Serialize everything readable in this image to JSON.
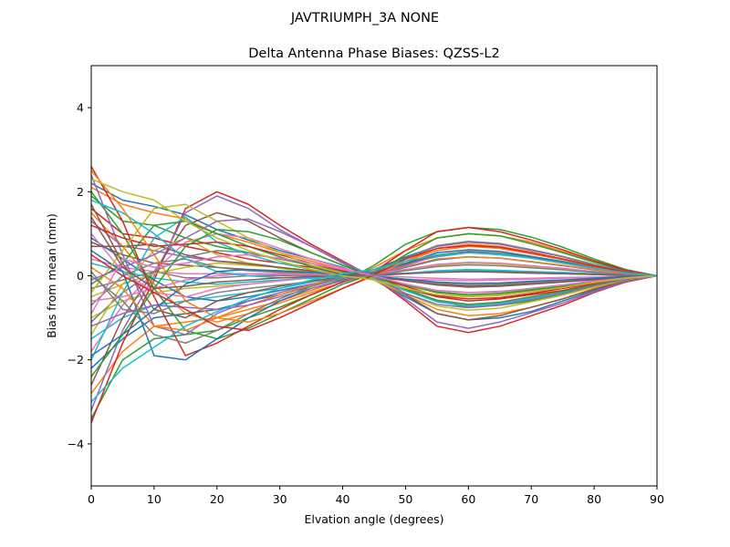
{
  "figure": {
    "suptitle": "JAVTRIUMPH_3A   NONE"
  },
  "chart_data": {
    "type": "line",
    "title": "Delta Antenna Phase Biases: QZSS-L2",
    "xlabel": "Elvation angle (degrees)",
    "ylabel": "Bias from mean (mm)",
    "xlim": [
      0,
      90
    ],
    "ylim": [
      -5,
      5
    ],
    "xticks": [
      0,
      10,
      20,
      30,
      40,
      50,
      60,
      70,
      80,
      90
    ],
    "yticks": [
      -4,
      -2,
      0,
      2,
      4
    ],
    "xtick_labels": [
      "0",
      "10",
      "20",
      "30",
      "40",
      "50",
      "60",
      "70",
      "80",
      "90"
    ],
    "ytick_labels": [
      "−4",
      "−2",
      "0",
      "2",
      "4"
    ],
    "grid": false,
    "legend": "none",
    "colors": [
      "#1f77b4",
      "#ff7f0e",
      "#2ca02c",
      "#d62728",
      "#9467bd",
      "#8c564b",
      "#e377c2",
      "#7f7f7f",
      "#bcbd22",
      "#17becf"
    ],
    "x": [
      0,
      5,
      10,
      15,
      20,
      25,
      30,
      35,
      40,
      45,
      50,
      55,
      60,
      65,
      70,
      75,
      80,
      85,
      90
    ],
    "series": [
      {
        "values": [
          2.2,
          1.8,
          1.65,
          1.45,
          1.1,
          0.85,
          0.6,
          0.4,
          0.2,
          -0.1,
          -0.5,
          -0.9,
          -1.05,
          -1.0,
          -0.85,
          -0.6,
          -0.35,
          -0.15,
          0.0
        ]
      },
      {
        "values": [
          2.1,
          1.7,
          1.5,
          1.35,
          1.0,
          0.8,
          0.55,
          0.35,
          0.15,
          -0.1,
          -0.45,
          -0.8,
          -0.95,
          -0.9,
          -0.75,
          -0.55,
          -0.3,
          -0.12,
          0.0
        ]
      },
      {
        "values": [
          1.9,
          1.3,
          1.2,
          0.9,
          0.7,
          0.55,
          0.4,
          0.25,
          0.1,
          -0.1,
          -0.35,
          -0.6,
          -0.75,
          -0.7,
          -0.6,
          -0.45,
          -0.25,
          -0.1,
          0.0
        ]
      },
      {
        "values": [
          1.6,
          1.0,
          0.9,
          0.7,
          0.55,
          0.4,
          0.3,
          0.2,
          0.05,
          -0.1,
          -0.3,
          -0.5,
          -0.6,
          -0.55,
          -0.45,
          -0.35,
          -0.2,
          -0.08,
          0.0
        ]
      },
      {
        "values": [
          1.3,
          0.7,
          0.6,
          0.45,
          0.35,
          0.3,
          0.2,
          0.1,
          0.0,
          -0.05,
          -0.2,
          -0.35,
          -0.4,
          -0.38,
          -0.3,
          -0.22,
          -0.12,
          -0.05,
          0.0
        ]
      },
      {
        "values": [
          0.8,
          0.5,
          0.3,
          0.25,
          0.2,
          0.15,
          0.1,
          0.05,
          0.0,
          -0.05,
          -0.1,
          -0.2,
          -0.25,
          -0.22,
          -0.18,
          -0.12,
          -0.08,
          -0.03,
          0.0
        ]
      },
      {
        "values": [
          0.4,
          0.2,
          0.1,
          0.05,
          0.05,
          0.05,
          0.02,
          0.0,
          -0.02,
          -0.05,
          -0.08,
          -0.1,
          -0.12,
          -0.1,
          -0.08,
          -0.06,
          -0.04,
          -0.02,
          0.0
        ]
      },
      {
        "values": [
          -0.3,
          -0.1,
          0.1,
          -0.05,
          -0.05,
          0.0,
          0.0,
          0.02,
          0.03,
          0.04,
          0.06,
          0.08,
          0.1,
          0.08,
          0.06,
          0.05,
          0.03,
          0.01,
          0.0
        ]
      },
      {
        "values": [
          -1.0,
          -0.6,
          -0.4,
          -0.3,
          -0.25,
          -0.2,
          -0.12,
          -0.05,
          0.0,
          0.05,
          0.15,
          0.25,
          0.3,
          0.28,
          0.22,
          0.16,
          0.1,
          0.04,
          0.0
        ]
      },
      {
        "values": [
          -1.5,
          -1.0,
          -0.7,
          -0.6,
          -0.5,
          -0.4,
          -0.3,
          -0.15,
          0.0,
          0.1,
          0.3,
          0.45,
          0.55,
          0.5,
          0.42,
          0.3,
          0.18,
          0.07,
          0.0
        ]
      },
      {
        "values": [
          -2.2,
          -1.5,
          -1.0,
          -0.9,
          -0.8,
          -0.6,
          -0.45,
          -0.25,
          -0.05,
          0.15,
          0.45,
          0.7,
          0.8,
          0.75,
          0.62,
          0.45,
          0.27,
          0.1,
          0.0
        ]
      },
      {
        "values": [
          -2.8,
          -1.8,
          -1.2,
          -1.1,
          -1.0,
          -0.8,
          -0.6,
          -0.35,
          -0.1,
          0.2,
          0.6,
          0.9,
          1.0,
          0.95,
          0.8,
          0.58,
          0.35,
          0.13,
          0.0
        ]
      },
      {
        "values": [
          -3.4,
          -2.0,
          -1.5,
          -1.4,
          -1.3,
          -1.0,
          -0.75,
          -0.45,
          -0.15,
          0.25,
          0.75,
          1.05,
          1.15,
          1.1,
          0.92,
          0.68,
          0.4,
          0.15,
          0.0
        ]
      },
      {
        "values": [
          -3.5,
          -1.6,
          -0.1,
          1.6,
          2.0,
          1.7,
          1.2,
          0.75,
          0.35,
          -0.05,
          -0.6,
          -1.2,
          -1.35,
          -1.2,
          -0.95,
          -0.7,
          -0.4,
          -0.15,
          0.0
        ]
      },
      {
        "values": [
          -3.2,
          -1.3,
          0.0,
          1.5,
          1.9,
          1.6,
          1.1,
          0.7,
          0.3,
          -0.05,
          -0.55,
          -1.1,
          -1.25,
          -1.1,
          -0.88,
          -0.65,
          -0.38,
          -0.14,
          0.0
        ]
      },
      {
        "values": [
          -2.6,
          -1.0,
          0.1,
          1.2,
          1.5,
          1.3,
          0.9,
          0.55,
          0.25,
          -0.05,
          -0.45,
          -0.9,
          -1.05,
          -0.95,
          -0.75,
          -0.55,
          -0.32,
          -0.12,
          0.0
        ]
      },
      {
        "values": [
          -1.8,
          -0.7,
          0.1,
          0.8,
          1.0,
          0.9,
          0.65,
          0.4,
          0.18,
          -0.03,
          -0.3,
          -0.6,
          -0.7,
          -0.65,
          -0.52,
          -0.38,
          -0.22,
          -0.08,
          0.0
        ]
      },
      {
        "values": [
          -1.1,
          -0.4,
          0.1,
          0.45,
          0.6,
          0.55,
          0.4,
          0.25,
          0.1,
          -0.02,
          -0.2,
          -0.38,
          -0.45,
          -0.42,
          -0.33,
          -0.24,
          -0.14,
          -0.05,
          0.0
        ]
      },
      {
        "values": [
          -0.5,
          -0.2,
          0.05,
          0.2,
          0.3,
          0.25,
          0.2,
          0.12,
          0.05,
          -0.01,
          -0.1,
          -0.18,
          -0.22,
          -0.2,
          -0.16,
          -0.12,
          -0.07,
          -0.03,
          0.0
        ]
      },
      {
        "values": [
          0.3,
          0.1,
          -0.05,
          -0.15,
          -0.2,
          -0.15,
          -0.1,
          -0.06,
          -0.02,
          0.01,
          0.06,
          0.12,
          0.15,
          0.13,
          0.1,
          0.08,
          0.05,
          0.02,
          0.0
        ]
      },
      {
        "values": [
          0.9,
          0.4,
          -0.1,
          -0.5,
          -0.6,
          -0.5,
          -0.35,
          -0.2,
          -0.08,
          0.02,
          0.2,
          0.38,
          0.45,
          0.42,
          0.33,
          0.24,
          0.14,
          0.05,
          0.0
        ]
      },
      {
        "values": [
          1.5,
          0.7,
          -0.2,
          -0.9,
          -1.1,
          -0.9,
          -0.65,
          -0.4,
          -0.15,
          0.04,
          0.35,
          0.65,
          0.75,
          0.7,
          0.56,
          0.4,
          0.24,
          0.09,
          0.0
        ]
      },
      {
        "values": [
          2.0,
          1.0,
          -0.3,
          -1.3,
          -1.5,
          -1.25,
          -0.9,
          -0.55,
          -0.2,
          0.05,
          0.5,
          0.9,
          1.0,
          0.95,
          0.76,
          0.55,
          0.32,
          0.12,
          0.0
        ]
      },
      {
        "values": [
          2.6,
          1.3,
          -0.5,
          -1.9,
          -1.6,
          -1.2,
          -0.8,
          -0.45,
          -0.15,
          0.1,
          0.6,
          1.05,
          1.15,
          1.05,
          0.85,
          0.62,
          0.36,
          0.13,
          0.0
        ]
      },
      {
        "values": [
          2.4,
          0.5,
          -1.2,
          -1.4,
          -0.9,
          -0.6,
          -0.4,
          -0.2,
          -0.05,
          0.1,
          0.4,
          0.7,
          0.8,
          0.75,
          0.6,
          0.45,
          0.26,
          0.1,
          0.0
        ]
      },
      {
        "values": [
          1.7,
          0.3,
          -0.8,
          -1.0,
          -0.6,
          -0.4,
          -0.25,
          -0.12,
          -0.03,
          0.07,
          0.28,
          0.5,
          0.58,
          0.54,
          0.44,
          0.32,
          0.19,
          0.07,
          0.0
        ]
      },
      {
        "values": [
          1.0,
          0.1,
          -0.4,
          -0.5,
          -0.3,
          -0.2,
          -0.12,
          -0.05,
          -0.01,
          0.04,
          0.15,
          0.27,
          0.32,
          0.3,
          0.24,
          0.18,
          0.1,
          0.04,
          0.0
        ]
      },
      {
        "values": [
          -0.7,
          0.0,
          0.3,
          0.4,
          0.2,
          0.12,
          0.08,
          0.04,
          0.01,
          -0.02,
          -0.1,
          -0.18,
          -0.22,
          -0.2,
          -0.16,
          -0.12,
          -0.07,
          -0.03,
          0.0
        ]
      },
      {
        "values": [
          -1.4,
          -0.2,
          0.6,
          0.9,
          0.5,
          0.3,
          0.18,
          0.08,
          0.02,
          -0.05,
          -0.22,
          -0.4,
          -0.48,
          -0.44,
          -0.36,
          -0.26,
          -0.15,
          -0.06,
          0.0
        ]
      },
      {
        "values": [
          -2.0,
          -0.4,
          0.9,
          1.4,
          0.8,
          0.5,
          0.3,
          0.15,
          0.04,
          -0.08,
          -0.35,
          -0.62,
          -0.72,
          -0.67,
          -0.54,
          -0.4,
          -0.23,
          -0.09,
          0.0
        ]
      },
      {
        "values": [
          0.6,
          0.1,
          -1.9,
          -2.0,
          -1.5,
          -1.0,
          -0.6,
          -0.3,
          -0.1,
          0.05,
          0.3,
          0.55,
          0.62,
          0.58,
          0.46,
          0.34,
          0.2,
          0.07,
          0.0
        ]
      },
      {
        "values": [
          0.2,
          -0.3,
          -1.2,
          -1.3,
          -1.0,
          -0.7,
          -0.45,
          -0.22,
          -0.07,
          0.03,
          0.22,
          0.4,
          0.45,
          0.42,
          0.34,
          0.25,
          0.15,
          0.05,
          0.0
        ]
      },
      {
        "values": [
          -0.2,
          0.3,
          1.2,
          1.3,
          1.0,
          0.7,
          0.45,
          0.22,
          0.07,
          -0.03,
          -0.22,
          -0.4,
          -0.45,
          -0.42,
          -0.34,
          -0.25,
          -0.15,
          -0.05,
          0.0
        ]
      },
      {
        "values": [
          1.2,
          0.9,
          0.7,
          0.75,
          0.8,
          0.7,
          0.5,
          0.3,
          0.12,
          -0.02,
          -0.25,
          -0.48,
          -0.55,
          -0.52,
          -0.42,
          -0.3,
          -0.18,
          -0.07,
          0.0
        ]
      },
      {
        "values": [
          -1.2,
          -0.9,
          -0.7,
          -0.75,
          -0.8,
          -0.7,
          -0.5,
          -0.3,
          -0.12,
          0.02,
          0.25,
          0.48,
          0.55,
          0.52,
          0.42,
          0.3,
          0.18,
          0.07,
          0.0
        ]
      },
      {
        "values": [
          0.7,
          0.7,
          0.75,
          0.5,
          0.35,
          0.28,
          0.2,
          0.12,
          0.05,
          -0.01,
          -0.12,
          -0.22,
          -0.27,
          -0.25,
          -0.2,
          -0.15,
          -0.09,
          -0.03,
          0.0
        ]
      },
      {
        "values": [
          -0.6,
          -0.5,
          -0.3,
          -0.1,
          0.0,
          0.05,
          0.05,
          0.04,
          0.02,
          0.0,
          -0.03,
          -0.06,
          -0.08,
          -0.07,
          -0.06,
          -0.04,
          -0.03,
          -0.01,
          0.0
        ]
      },
      {
        "values": [
          0.0,
          -0.6,
          -1.4,
          -1.6,
          -1.3,
          -0.9,
          -0.55,
          -0.25,
          -0.06,
          0.1,
          0.42,
          0.72,
          0.82,
          0.77,
          0.62,
          0.46,
          0.27,
          0.1,
          0.0
        ]
      },
      {
        "values": [
          -0.4,
          0.6,
          1.6,
          1.7,
          1.3,
          0.9,
          0.55,
          0.25,
          0.06,
          -0.1,
          -0.42,
          -0.72,
          -0.82,
          -0.77,
          -0.62,
          -0.46,
          -0.27,
          -0.1,
          0.0
        ]
      },
      {
        "values": [
          1.8,
          1.5,
          1.0,
          0.4,
          0.1,
          0.0,
          -0.05,
          -0.05,
          -0.03,
          0.0,
          0.05,
          0.1,
          0.12,
          0.11,
          0.09,
          0.07,
          0.04,
          0.01,
          0.0
        ]
      },
      {
        "values": [
          -1.9,
          -1.4,
          -0.8,
          -0.2,
          0.1,
          0.15,
          0.12,
          0.08,
          0.03,
          -0.01,
          -0.08,
          -0.15,
          -0.18,
          -0.17,
          -0.13,
          -0.1,
          -0.06,
          -0.02,
          0.0
        ]
      },
      {
        "values": [
          2.5,
          1.6,
          0.5,
          -0.6,
          -1.0,
          -1.1,
          -0.9,
          -0.6,
          -0.3,
          0.0,
          0.35,
          0.6,
          0.7,
          0.65,
          0.52,
          0.38,
          0.22,
          0.08,
          0.0
        ]
      },
      {
        "values": [
          -2.4,
          -1.4,
          -0.3,
          0.7,
          1.1,
          1.05,
          0.85,
          0.55,
          0.25,
          0.0,
          -0.32,
          -0.58,
          -0.68,
          -0.63,
          -0.5,
          -0.37,
          -0.22,
          -0.08,
          0.0
        ]
      },
      {
        "values": [
          0.5,
          0.0,
          -0.4,
          -0.8,
          -1.2,
          -1.3,
          -1.0,
          -0.65,
          -0.3,
          0.02,
          0.4,
          0.65,
          0.72,
          0.68,
          0.55,
          0.4,
          0.23,
          0.09,
          0.0
        ]
      },
      {
        "values": [
          -0.1,
          0.2,
          0.5,
          0.9,
          1.3,
          1.35,
          1.05,
          0.7,
          0.32,
          -0.02,
          -0.42,
          -0.68,
          -0.76,
          -0.7,
          -0.57,
          -0.42,
          -0.24,
          -0.09,
          0.0
        ]
      },
      {
        "values": [
          1.4,
          0.2,
          -0.3,
          -0.25,
          -0.15,
          -0.1,
          -0.05,
          -0.02,
          0.0,
          0.02,
          0.05,
          0.08,
          0.1,
          0.09,
          0.07,
          0.05,
          0.03,
          0.01,
          0.0
        ]
      },
      {
        "values": [
          -0.9,
          0.4,
          0.2,
          0.3,
          0.45,
          0.5,
          0.42,
          0.3,
          0.15,
          0.0,
          -0.2,
          -0.35,
          -0.4,
          -0.37,
          -0.3,
          -0.22,
          -0.13,
          -0.05,
          0.0
        ]
      },
      {
        "values": [
          0.1,
          -0.8,
          -0.9,
          -0.6,
          -0.4,
          -0.3,
          -0.22,
          -0.14,
          -0.06,
          0.01,
          0.12,
          0.22,
          0.26,
          0.24,
          0.19,
          0.14,
          0.08,
          0.03,
          0.0
        ]
      },
      {
        "values": [
          2.3,
          2.0,
          1.8,
          1.3,
          0.9,
          0.6,
          0.35,
          0.15,
          0.0,
          -0.1,
          -0.3,
          -0.45,
          -0.5,
          -0.47,
          -0.38,
          -0.28,
          -0.16,
          -0.06,
          0.0
        ]
      },
      {
        "values": [
          -3.0,
          -2.2,
          -1.7,
          -1.2,
          -0.85,
          -0.55,
          -0.3,
          -0.1,
          0.05,
          0.15,
          0.35,
          0.5,
          0.55,
          0.52,
          0.42,
          0.31,
          0.18,
          0.07,
          0.0
        ]
      }
    ]
  }
}
